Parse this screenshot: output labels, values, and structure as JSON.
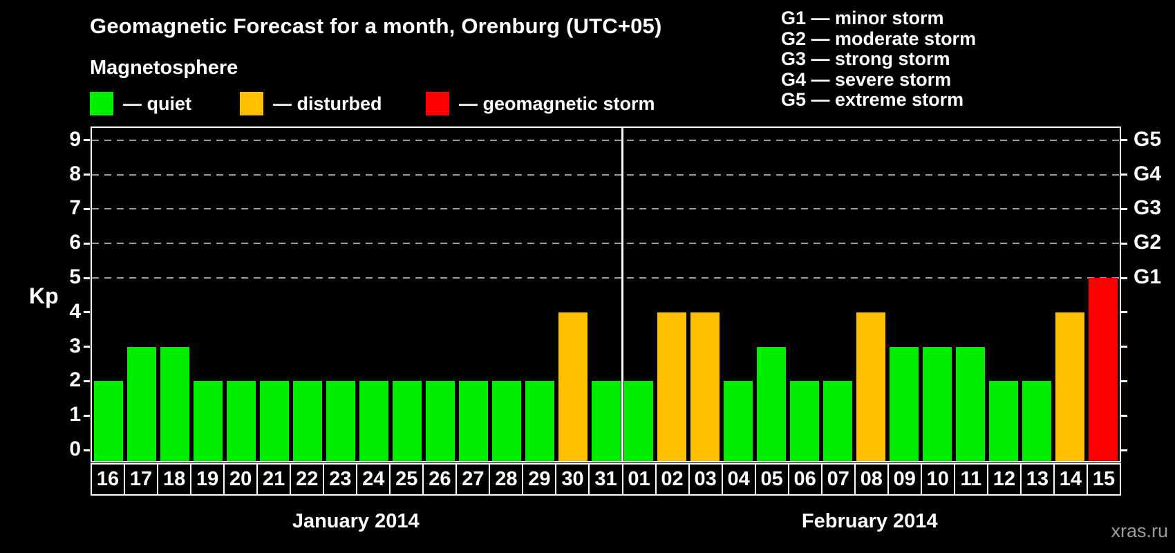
{
  "header": {
    "title": "Geomagnetic Forecast for a month, Orenburg (UTC+05)"
  },
  "legend": {
    "heading": "Magnetosphere",
    "items": [
      {
        "label": "— quiet",
        "color": "#00EE00",
        "status": "quiet"
      },
      {
        "label": "— disturbed",
        "color": "#FFC000",
        "status": "disturbed"
      },
      {
        "label": "— geomagnetic storm",
        "color": "#FF0000",
        "status": "storm"
      }
    ]
  },
  "g_legend": {
    "items": [
      "G1 — minor storm",
      "G2 — moderate storm",
      "G3 — strong storm",
      "G4 — severe storm",
      "G5 — extreme storm"
    ]
  },
  "axis": {
    "kp_label": "Kp",
    "y_ticks": [
      0,
      1,
      2,
      3,
      4,
      5,
      6,
      7,
      8,
      9
    ]
  },
  "footer": {
    "watermark": "xras.ru"
  },
  "chart_data": {
    "type": "bar",
    "title": "Geomagnetic Forecast for a month, Orenburg (UTC+05)",
    "ylabel": "Kp",
    "ylim": [
      0,
      9
    ],
    "grid": "dashed horizontal lines at Kp 5-9 only",
    "legend_position": "top-left",
    "right_axis": {
      "labels": [
        "G1",
        "G2",
        "G3",
        "G4",
        "G5"
      ],
      "kp_positions": [
        5,
        6,
        7,
        8,
        9
      ]
    },
    "status_colors": {
      "quiet": "#00EE00",
      "disturbed": "#FFC000",
      "storm": "#FF0000"
    },
    "groups": [
      {
        "month_label": "January 2014",
        "days": [
          "16",
          "17",
          "18",
          "19",
          "20",
          "21",
          "22",
          "23",
          "24",
          "25",
          "26",
          "27",
          "28",
          "29",
          "30",
          "31"
        ],
        "kp": [
          2,
          3,
          3,
          2,
          2,
          2,
          2,
          2,
          2,
          2,
          2,
          2,
          2,
          2,
          4,
          2
        ],
        "status": [
          "quiet",
          "quiet",
          "quiet",
          "quiet",
          "quiet",
          "quiet",
          "quiet",
          "quiet",
          "quiet",
          "quiet",
          "quiet",
          "quiet",
          "quiet",
          "quiet",
          "disturbed",
          "quiet"
        ]
      },
      {
        "month_label": "February 2014",
        "days": [
          "01",
          "02",
          "03",
          "04",
          "05",
          "06",
          "07",
          "08",
          "09",
          "10",
          "11",
          "12",
          "13",
          "14",
          "15"
        ],
        "kp": [
          2,
          4,
          4,
          2,
          3,
          2,
          2,
          4,
          3,
          3,
          3,
          2,
          2,
          4,
          5
        ],
        "status": [
          "quiet",
          "disturbed",
          "disturbed",
          "quiet",
          "quiet",
          "quiet",
          "quiet",
          "disturbed",
          "quiet",
          "quiet",
          "quiet",
          "quiet",
          "quiet",
          "disturbed",
          "storm"
        ]
      }
    ]
  }
}
